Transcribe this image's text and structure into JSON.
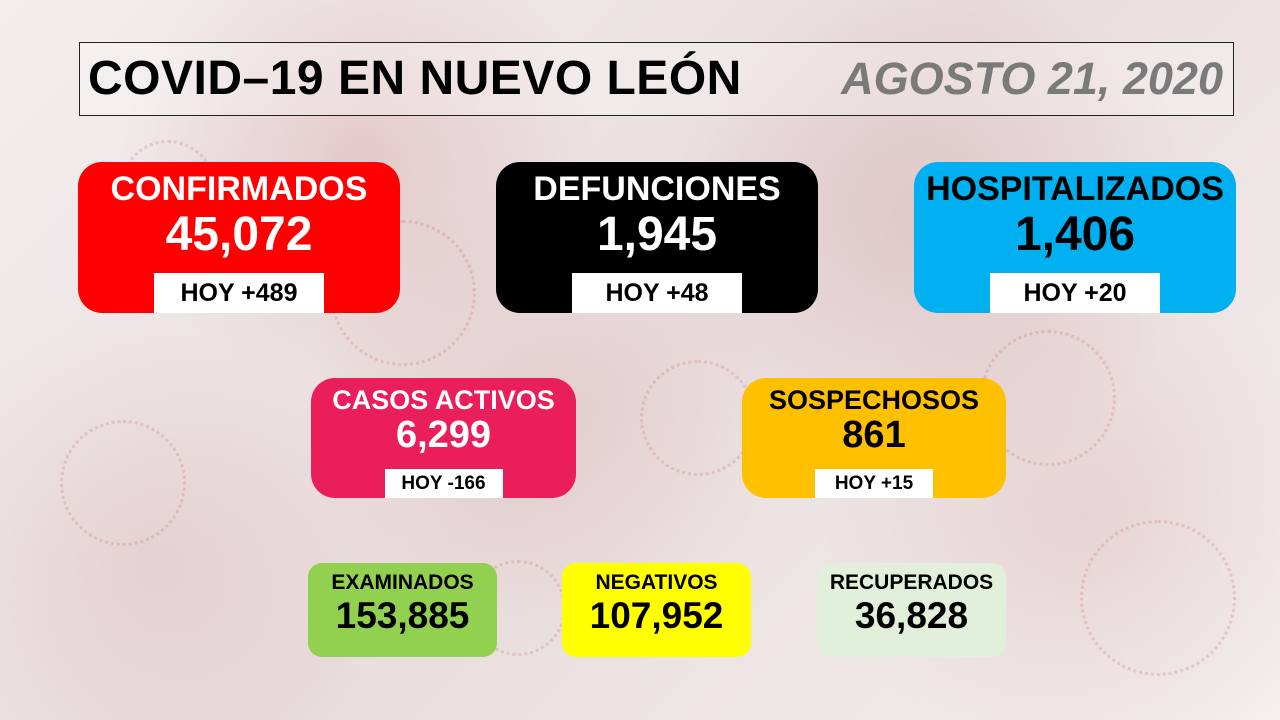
{
  "header": {
    "title": "COVID–19 EN NUEVO LEÓN",
    "date": "AGOSTO 21, 2020"
  },
  "colors": {
    "confirmados": "#ff0000",
    "defunciones": "#000000",
    "hospitalizados": "#00b0f0",
    "casos_activos": "#e91e5a",
    "sospechosos": "#ffc000",
    "examinados": "#92d050",
    "negativos": "#ffff00",
    "recuperados": "#e2efda"
  },
  "stats": {
    "confirmados": {
      "label": "CONFIRMADOS",
      "value": "45,072",
      "today": "HOY +489"
    },
    "defunciones": {
      "label": "DEFUNCIONES",
      "value": "1,945",
      "today": "HOY +48"
    },
    "hospitalizados": {
      "label": "HOSPITALIZADOS",
      "value": "1,406",
      "today": "HOY +20"
    },
    "casos_activos": {
      "label": "CASOS ACTIVOS",
      "value": "6,299",
      "today": "HOY -166"
    },
    "sospechosos": {
      "label": "SOSPECHOSOS",
      "value": "861",
      "today": "HOY +15"
    },
    "examinados": {
      "label": "EXAMINADOS",
      "value": "153,885"
    },
    "negativos": {
      "label": "NEGATIVOS",
      "value": "107,952"
    },
    "recuperados": {
      "label": "RECUPERADOS",
      "value": "36,828"
    }
  }
}
